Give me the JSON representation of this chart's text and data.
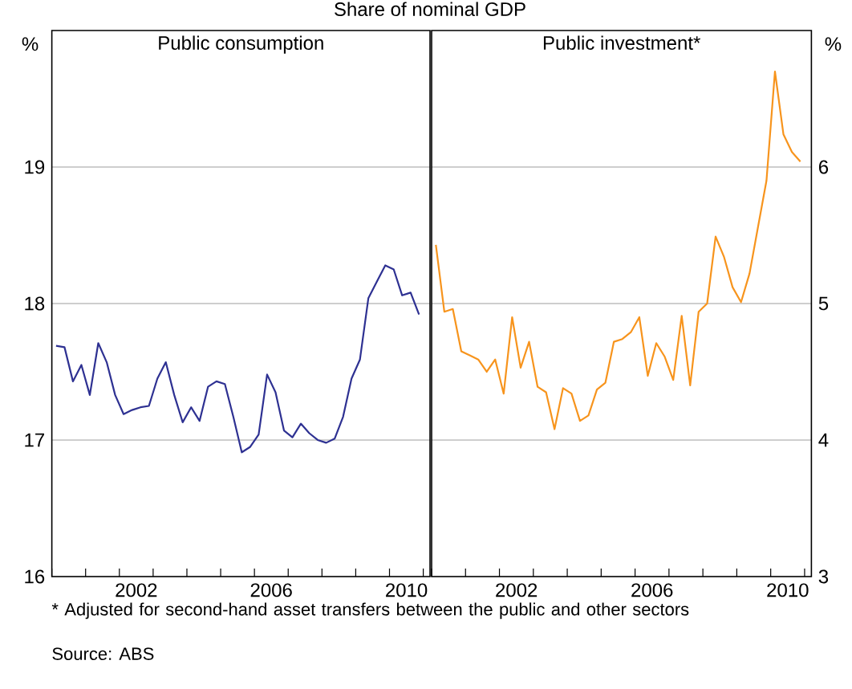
{
  "chart_data": [
    {
      "type": "line",
      "title": "Public consumption",
      "ylabel": "%",
      "grid": "y",
      "annotations": [
        "Share of nominal GDP",
        "* Adjusted for second-hand asset transfers between the public and other sectors",
        "Source: ABS"
      ],
      "xlim": [
        2000,
        2011.2
      ],
      "ylim": [
        16,
        20
      ],
      "yticks": [
        16,
        17,
        18,
        19
      ],
      "xticks": [
        {
          "value": 2000,
          "label": null
        },
        {
          "value": 2001,
          "label": null
        },
        {
          "value": 2002,
          "label": null
        },
        {
          "value": 2003,
          "label": null
        },
        {
          "value": 2004,
          "label": null
        },
        {
          "value": 2005,
          "label": null
        },
        {
          "value": 2006,
          "label": null
        },
        {
          "value": 2007,
          "label": null
        },
        {
          "value": 2008,
          "label": null
        },
        {
          "value": 2009,
          "label": null
        },
        {
          "value": 2010,
          "label": null
        },
        {
          "value": 2011,
          "label": null
        },
        {
          "value": 2002.5,
          "label": "2002"
        },
        {
          "value": 2006.5,
          "label": "2006"
        },
        {
          "value": 2010.5,
          "label": "2010"
        }
      ],
      "x": [
        2000.125,
        2000.375,
        2000.625,
        2000.875,
        2001.125,
        2001.375,
        2001.625,
        2001.875,
        2002.125,
        2002.375,
        2002.625,
        2002.875,
        2003.125,
        2003.375,
        2003.625,
        2003.875,
        2004.125,
        2004.375,
        2004.625,
        2004.875,
        2005.125,
        2005.375,
        2005.625,
        2005.875,
        2006.125,
        2006.375,
        2006.625,
        2006.875,
        2007.125,
        2007.375,
        2007.625,
        2007.875,
        2008.125,
        2008.375,
        2008.625,
        2008.875,
        2009.125,
        2009.375,
        2009.625,
        2009.875,
        2010.125,
        2010.375,
        2010.625,
        2010.875
      ],
      "series": [
        {
          "color": "#2e3192",
          "values": [
            17.69,
            17.68,
            17.43,
            17.55,
            17.33,
            17.71,
            17.57,
            17.33,
            17.19,
            17.22,
            17.24,
            17.25,
            17.45,
            17.57,
            17.33,
            17.13,
            17.24,
            17.14,
            17.39,
            17.43,
            17.41,
            17.17,
            16.91,
            16.95,
            17.04,
            17.48,
            17.35,
            17.07,
            17.02,
            17.12,
            17.05,
            17.0,
            16.98,
            17.01,
            17.17,
            17.45,
            17.59,
            18.04,
            18.16,
            18.28,
            18.25,
            18.06,
            18.08,
            17.92
          ]
        }
      ]
    },
    {
      "type": "line",
      "title": "Public investment*",
      "ylabel": "%",
      "grid": "y",
      "xlim": [
        2000,
        2011.2
      ],
      "ylim": [
        3,
        7
      ],
      "yticks": [
        3,
        4,
        5,
        6
      ],
      "xticks": [
        {
          "value": 2000,
          "label": null
        },
        {
          "value": 2001,
          "label": null
        },
        {
          "value": 2002,
          "label": null
        },
        {
          "value": 2003,
          "label": null
        },
        {
          "value": 2004,
          "label": null
        },
        {
          "value": 2005,
          "label": null
        },
        {
          "value": 2006,
          "label": null
        },
        {
          "value": 2007,
          "label": null
        },
        {
          "value": 2008,
          "label": null
        },
        {
          "value": 2009,
          "label": null
        },
        {
          "value": 2010,
          "label": null
        },
        {
          "value": 2011,
          "label": null
        },
        {
          "value": 2002.5,
          "label": "2002"
        },
        {
          "value": 2006.5,
          "label": "2006"
        },
        {
          "value": 2010.5,
          "label": "2010"
        }
      ],
      "x": [
        2000.125,
        2000.375,
        2000.625,
        2000.875,
        2001.125,
        2001.375,
        2001.625,
        2001.875,
        2002.125,
        2002.375,
        2002.625,
        2002.875,
        2003.125,
        2003.375,
        2003.625,
        2003.875,
        2004.125,
        2004.375,
        2004.625,
        2004.875,
        2005.125,
        2005.375,
        2005.625,
        2005.875,
        2006.125,
        2006.375,
        2006.625,
        2006.875,
        2007.125,
        2007.375,
        2007.625,
        2007.875,
        2008.125,
        2008.375,
        2008.625,
        2008.875,
        2009.125,
        2009.375,
        2009.625,
        2009.875,
        2010.125,
        2010.375,
        2010.625,
        2010.875
      ],
      "series": [
        {
          "color": "#f7941d",
          "values": [
            5.43,
            4.94,
            4.96,
            4.65,
            4.62,
            4.59,
            4.5,
            4.59,
            4.34,
            4.9,
            4.53,
            4.72,
            4.39,
            4.35,
            4.08,
            4.38,
            4.34,
            4.14,
            4.18,
            4.37,
            4.42,
            4.72,
            4.74,
            4.79,
            4.9,
            4.47,
            4.71,
            4.61,
            4.44,
            4.91,
            4.4,
            4.94,
            5.0,
            5.49,
            5.34,
            5.12,
            5.01,
            5.22,
            5.56,
            5.9,
            6.7,
            6.24,
            6.11,
            6.04
          ]
        }
      ]
    }
  ]
}
